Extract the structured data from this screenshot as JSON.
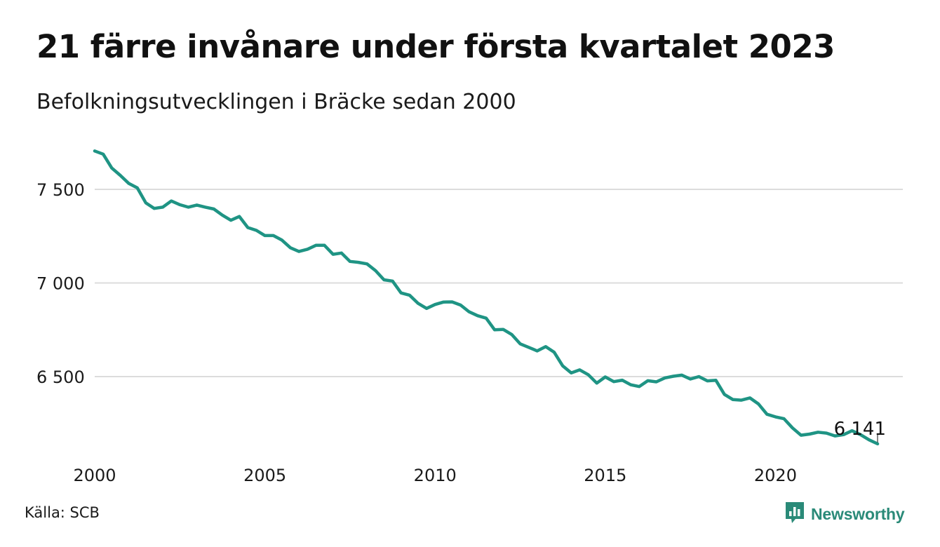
{
  "header": {
    "title": "21 färre invånare under första kvartalet 2023",
    "subtitle": "Befolkningsutvecklingen i Bräcke sedan 2000"
  },
  "footer": {
    "source": "Källa: SCB",
    "brand": "Newsworthy",
    "brand_icon": "newsworthy-logo-icon"
  },
  "colors": {
    "line": "#1f9484",
    "grid": "#dcdcdc",
    "brand": "#2a8a78"
  },
  "chart_data": {
    "type": "line",
    "title": "21 färre invånare under första kvartalet 2023",
    "subtitle": "Befolkningsutvecklingen i Bräcke sedan 2000",
    "xlabel": "",
    "ylabel": "",
    "x_start": 2000,
    "x_end": 2023,
    "ylim": [
      6100,
      7725
    ],
    "yticks": [
      6500,
      7000,
      7500
    ],
    "ytick_labels": [
      "6 500",
      "7 000",
      "7 500"
    ],
    "xticks": [
      2000,
      2005,
      2010,
      2015,
      2020
    ],
    "xtick_labels": [
      "2000",
      "2005",
      "2010",
      "2015",
      "2020"
    ],
    "grid": true,
    "end_label": "6 141",
    "series": [
      {
        "x": [
          2000.0,
          2000.25,
          2000.5,
          2000.75,
          2001.0,
          2001.25,
          2001.5,
          2001.75,
          2002.0,
          2002.25,
          2002.5,
          2002.75,
          2003.0,
          2003.25,
          2003.5,
          2003.75,
          2004.0,
          2004.25,
          2004.5,
          2004.75,
          2005.0,
          2005.25,
          2005.5,
          2005.75,
          2006.0,
          2006.25,
          2006.5,
          2006.75,
          2007.0,
          2007.25,
          2007.5,
          2007.75,
          2008.0,
          2008.25,
          2008.5,
          2008.75,
          2009.0,
          2009.25,
          2009.5,
          2009.75,
          2010.0,
          2010.25,
          2010.5,
          2010.75,
          2011.0,
          2011.25,
          2011.5,
          2011.75,
          2012.0,
          2012.25,
          2012.5,
          2012.75,
          2013.0,
          2013.25,
          2013.5,
          2013.75,
          2014.0,
          2014.25,
          2014.5,
          2014.75,
          2015.0,
          2015.25,
          2015.5,
          2015.75,
          2016.0,
          2016.25,
          2016.5,
          2016.75,
          2017.0,
          2017.25,
          2017.5,
          2017.75,
          2018.0,
          2018.25,
          2018.5,
          2018.75,
          2019.0,
          2019.25,
          2019.5,
          2019.75,
          2020.0,
          2020.25,
          2020.5,
          2020.75,
          2021.0,
          2021.25,
          2021.5,
          2021.75,
          2022.0,
          2022.25,
          2022.5,
          2022.75,
          2023.0
        ],
        "values": [
          7705,
          7688,
          7614,
          7575,
          7532,
          7508,
          7428,
          7398,
          7405,
          7438,
          7418,
          7405,
          7416,
          7405,
          7395,
          7362,
          7335,
          7355,
          7296,
          7281,
          7253,
          7253,
          7229,
          7188,
          7168,
          7180,
          7201,
          7201,
          7153,
          7160,
          7115,
          7110,
          7102,
          7066,
          7017,
          7010,
          6947,
          6935,
          6891,
          6864,
          6885,
          6898,
          6899,
          6882,
          6846,
          6825,
          6812,
          6750,
          6752,
          6725,
          6675,
          6656,
          6637,
          6660,
          6630,
          6557,
          6520,
          6536,
          6510,
          6465,
          6498,
          6473,
          6481,
          6456,
          6447,
          6478,
          6472,
          6493,
          6502,
          6508,
          6487,
          6500,
          6477,
          6480,
          6405,
          6377,
          6374,
          6386,
          6354,
          6299,
          6285,
          6275,
          6226,
          6187,
          6193,
          6203,
          6198,
          6183,
          6190,
          6211,
          6190,
          6162,
          6141
        ]
      }
    ]
  }
}
